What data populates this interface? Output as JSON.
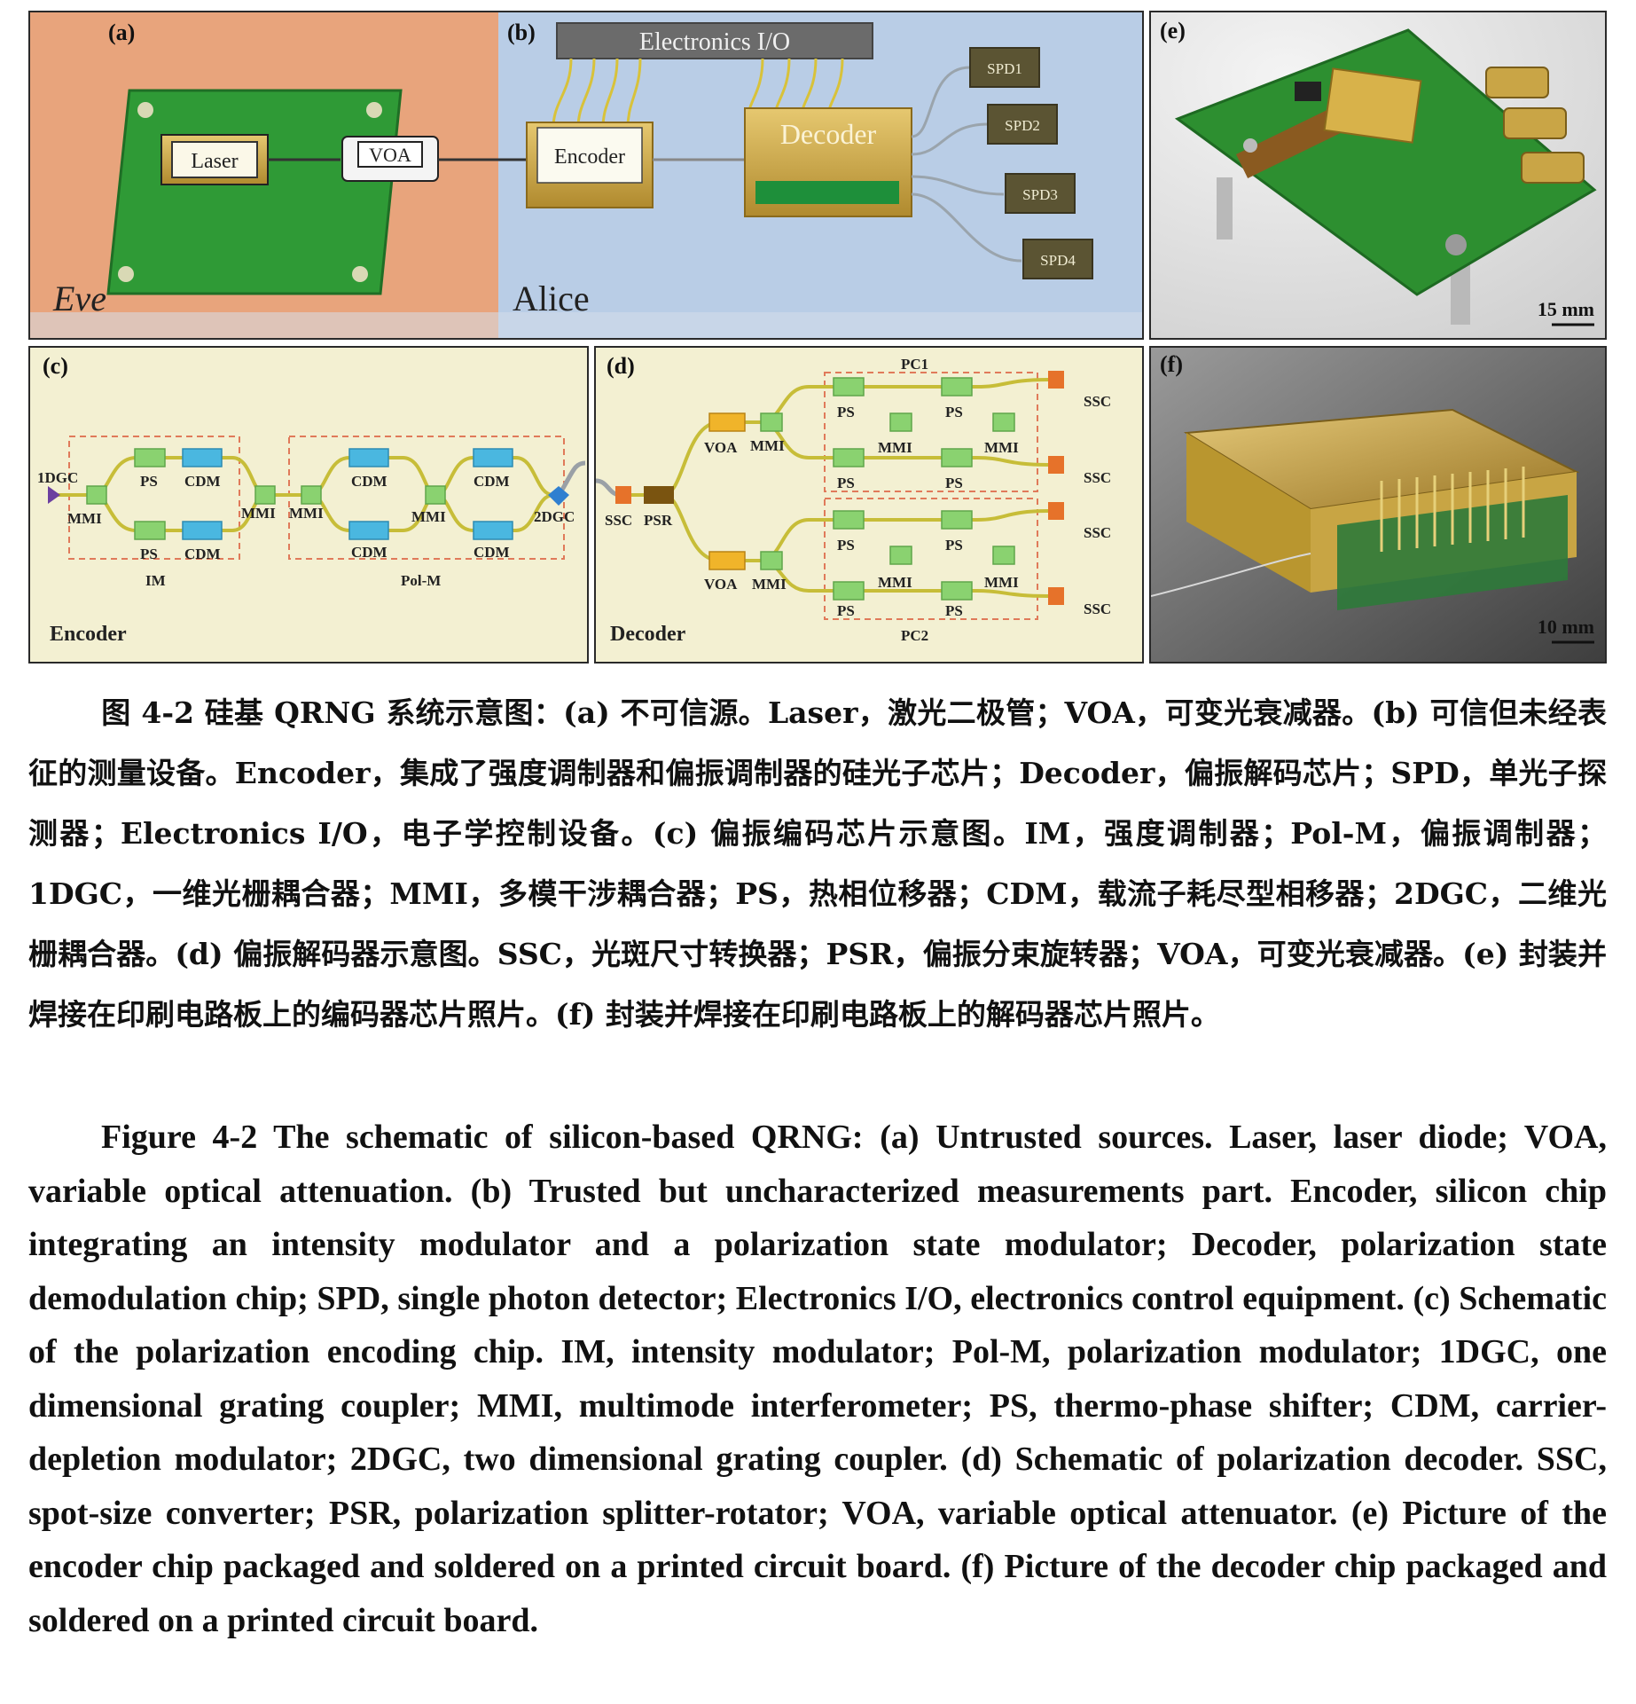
{
  "panels": {
    "a": {
      "label": "(a)",
      "region": "Eve",
      "laser": "Laser",
      "voa": "VOA"
    },
    "b": {
      "label": "(b)",
      "region": "Alice",
      "io": "Electronics I/O",
      "encoder": "Encoder",
      "decoder": "Decoder",
      "spd": [
        "SPD1",
        "SPD2",
        "SPD3",
        "SPD4"
      ]
    },
    "c": {
      "label": "(c)",
      "title": "Encoder",
      "in": "1DGC",
      "ps": "PS",
      "cdm": "CDM",
      "mmi": "MMI",
      "im": "IM",
      "polm": "Pol-M",
      "out": "2DGC"
    },
    "d": {
      "label": "(d)",
      "title": "Decoder",
      "ssc": "SSC",
      "psr": "PSR",
      "voa": "VOA",
      "mmi": "MMI",
      "ps": "PS",
      "pc1": "PC1",
      "pc2": "PC2"
    },
    "e": {
      "label": "(e)",
      "scale": "15 mm"
    },
    "f": {
      "label": "(f)",
      "scale": "10 mm"
    }
  },
  "caption_cn": {
    "lead": "图 4-2 硅基 QRNG 系统示意图：",
    "body": "(a) 不可信源。Laser，激光二极管；VOA，可变光衰减器。(b) 可信但未经表征的测量设备。Encoder，集成了强度调制器和偏振调制器的硅光子芯片；Decoder，偏振解码芯片；SPD，单光子探测器；Electronics I/O，电子学控制设备。(c) 偏振编码芯片示意图。IM，强度调制器；Pol-M，偏振调制器；1DGC，一维光栅耦合器；MMI，多模干涉耦合器；PS，热相位移器；CDM，载流子耗尽型相移器；2DGC，二维光栅耦合器。(d) 偏振解码器示意图。SSC，光斑尺寸转换器；PSR，偏振分束旋转器；VOA，可变光衰减器。(e) 封装并焊接在印刷电路板上的编码器芯片照片。(f) 封装并焊接在印刷电路板上的解码器芯片照片。"
  },
  "caption_en": {
    "lead": "Figure 4-2 The schematic of silicon-based QRNG: ",
    "body": "(a) Untrusted sources. Laser, laser diode; VOA, variable optical attenuation. (b) Trusted but uncharacterized measurements part. Encoder, silicon chip integrating an intensity modulator and a polarization state modulator; Decoder, polarization state demodulation chip; SPD, single photon detector; Electronics I/O, electronics control equipment. (c) Schematic of the polarization encoding chip. IM, intensity modulator; Pol-M, polarization modulator; 1DGC, one dimensional grating coupler; MMI, multimode interferometer; PS, thermo-phase shifter; CDM, carrier-depletion modulator; 2DGC, two dimensional grating coupler. (d) Schematic of polarization decoder. SSC, spot-size converter; PSR, polarization splitter-rotator; VOA, variable optical attenuator. (e) Picture of the encoder chip packaged and soldered on a printed circuit board. (f) Picture of the decoder chip packaged and soldered on a printed circuit board."
  },
  "colors": {
    "eve_bg": "#e8a47c",
    "alice_bg": "#b9cde6",
    "pcb_green": "#2f9a36",
    "gold": "#c9a646",
    "chip_bg": "#f3f0d2",
    "ps_green": "#8ad270",
    "cdm_blue": "#4ab7e0",
    "ssc_orange": "#e6722a"
  }
}
